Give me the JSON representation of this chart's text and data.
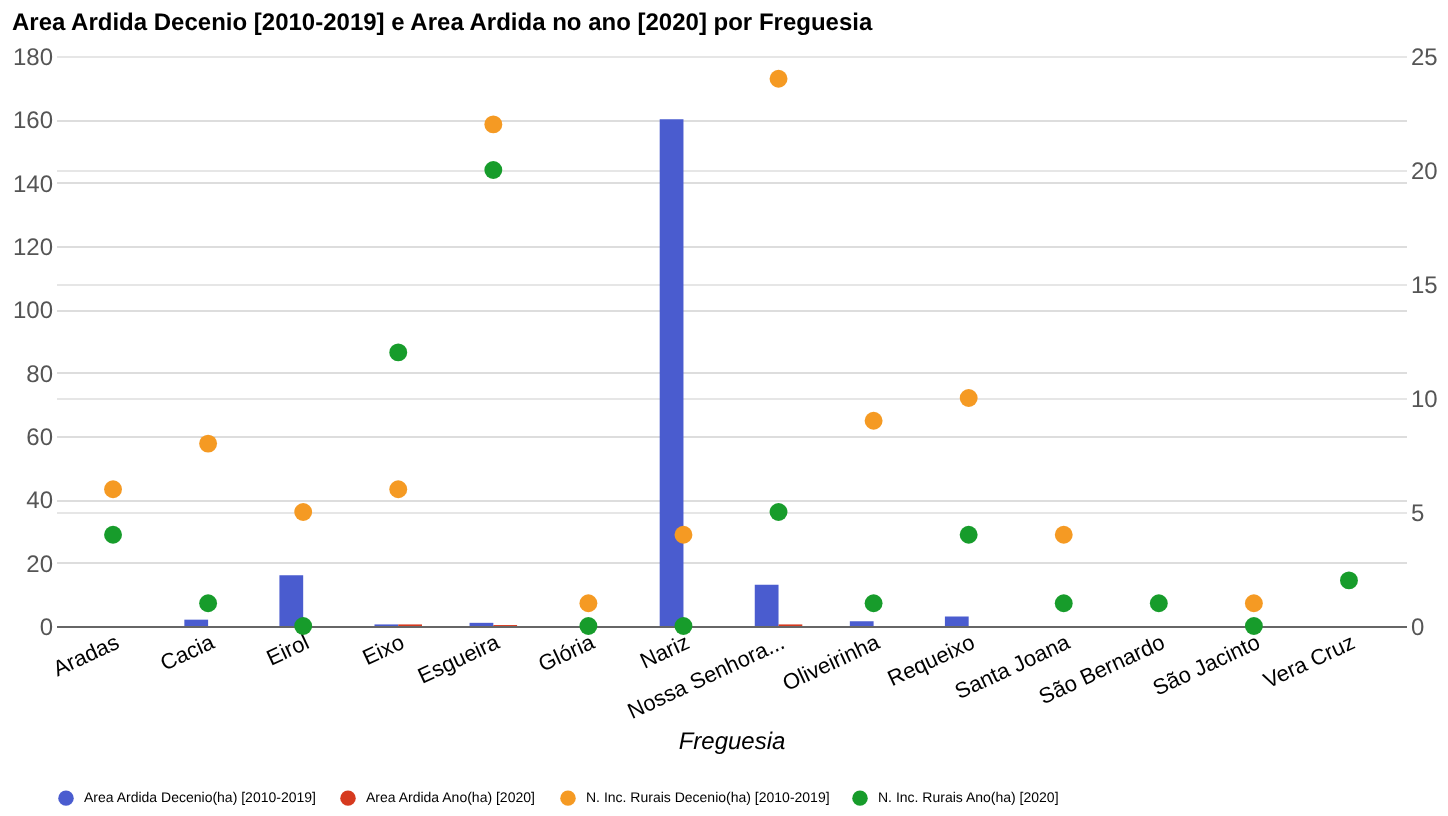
{
  "chart_data": {
    "type": "bar",
    "title": "Area Ardida Decenio [2010-2019] e Area Ardida no ano [2020] por Freguesia",
    "xlabel": "Freguesia",
    "categories": [
      "Aradas",
      "Cacia",
      "Eirol",
      "Eixo",
      "Esgueira",
      "Glória",
      "Nariz",
      "Nossa Senhora...",
      "Oliveirinha",
      "Requeixo",
      "Santa Joana",
      "São Bernardo",
      "São Jacinto",
      "Vera Cruz"
    ],
    "series": [
      {
        "name": "Area Ardida Decenio(ha) [2010-2019]",
        "color": "#4a5ccf",
        "values": [
          0,
          2,
          16,
          0.5,
          1,
          0,
          160,
          13,
          1.5,
          3,
          0,
          0,
          0,
          0
        ]
      },
      {
        "name": "Area Ardida Ano(ha) [2020]",
        "color": "#d63a1f",
        "values": [
          0,
          0,
          0,
          0.5,
          0.3,
          0,
          0,
          0.5,
          0,
          0,
          0,
          0,
          0,
          0
        ]
      },
      {
        "name": "N. Inc. Rurais Decenio(ha) [2010-2019]",
        "color": "#f59a23",
        "type": "scatter",
        "axis": "y2",
        "values": [
          6,
          8,
          5,
          6,
          22,
          1,
          4,
          24,
          9,
          10,
          4,
          null,
          1,
          null
        ]
      },
      {
        "name": "N. Inc. Rurais Ano(ha) [2020]",
        "color": "#179c2b",
        "type": "scatter",
        "axis": "y2",
        "values": [
          4,
          1,
          0,
          12,
          20,
          0,
          0,
          5,
          1,
          4,
          1,
          1,
          0,
          2
        ]
      }
    ],
    "ylim": [
      0,
      180
    ],
    "yticks": [
      0,
      20,
      40,
      60,
      80,
      100,
      120,
      140,
      160,
      180
    ],
    "y2lim": [
      0,
      25
    ],
    "y2ticks": [
      0,
      5,
      10,
      15,
      20,
      25
    ],
    "grid": true,
    "legend": "bottom",
    "marker": "circle"
  }
}
